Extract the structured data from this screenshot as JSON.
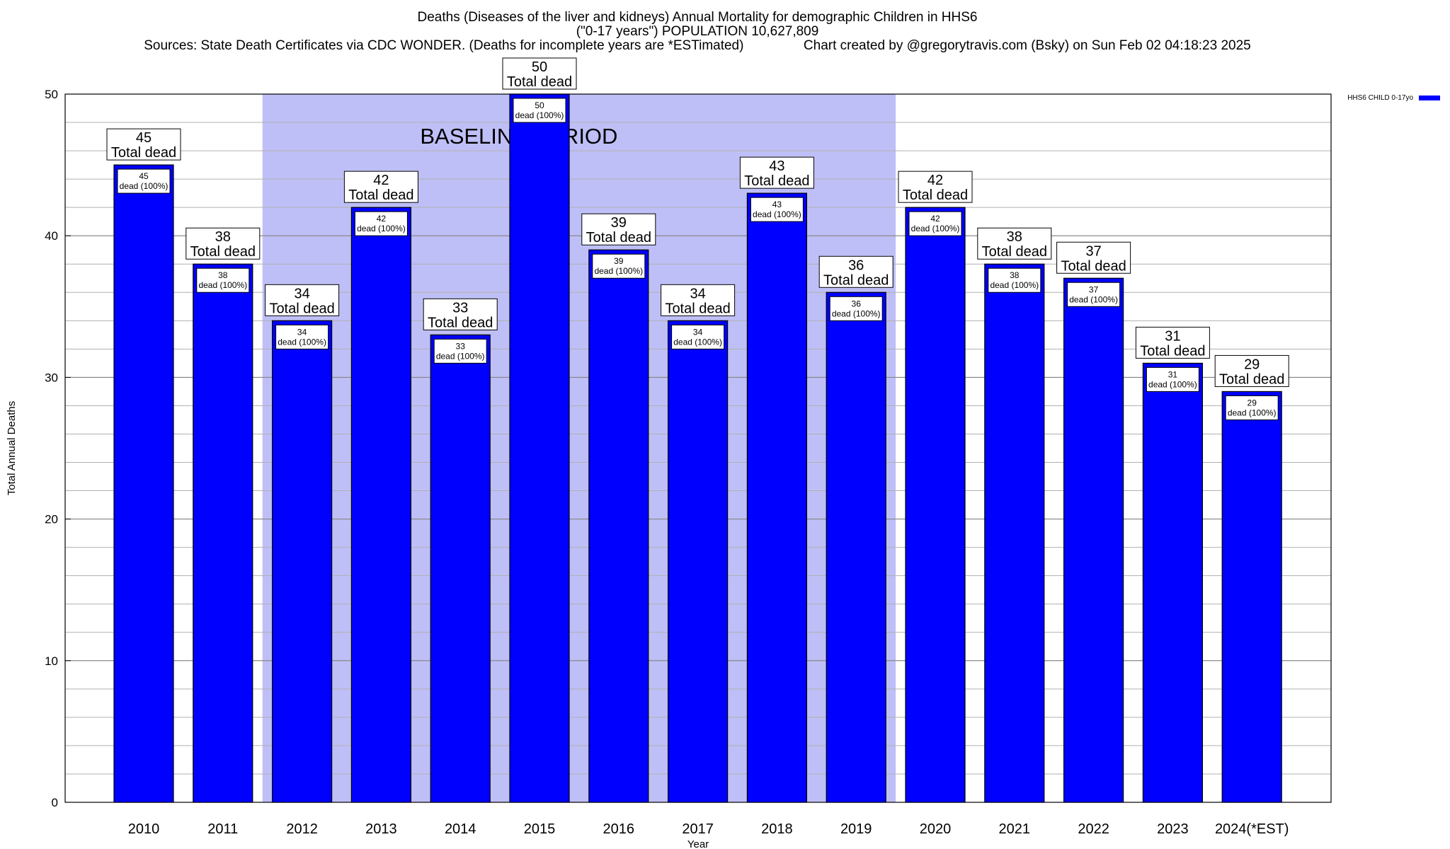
{
  "title_line1": "Deaths (Diseases of the liver and kidneys) Annual Mortality for demographic Children in HHS6",
  "title_line2": "(\"0-17 years\") POPULATION 10,627,809",
  "title_line3": "Sources: State Death Certificates via CDC WONDER. (Deaths for incomplete years are *ESTimated)                Chart created by @gregorytravis.com (Bsky) on Sun Feb 02 04:18:23 2025",
  "chart_data": {
    "type": "bar",
    "categories": [
      "2010",
      "2011",
      "2012",
      "2013",
      "2014",
      "2015",
      "2016",
      "2017",
      "2018",
      "2019",
      "2020",
      "2021",
      "2022",
      "2023",
      "2024(*EST)"
    ],
    "series": [
      {
        "name": "HHS6 CHILD 0-17yo",
        "color": "#0000ff",
        "values": [
          45,
          38,
          34,
          42,
          33,
          50,
          39,
          34,
          43,
          36,
          42,
          38,
          37,
          31,
          29
        ]
      }
    ],
    "total_label": "Total dead",
    "inner_label": "dead (100%)",
    "xlabel": "Year",
    "ylabel": "Total Annual Deaths",
    "ylim": [
      0,
      50
    ],
    "yticks": [
      0,
      10,
      20,
      30,
      40,
      50
    ],
    "minor_grid_step": 2,
    "grid": true,
    "legend_position": "top-right",
    "baseline_period": {
      "label": "BASELINE PERIOD",
      "from": "2012",
      "to": "2019",
      "color": "#bfbff7"
    },
    "bar_color": "#0000ff",
    "bar_border": "#000000"
  }
}
